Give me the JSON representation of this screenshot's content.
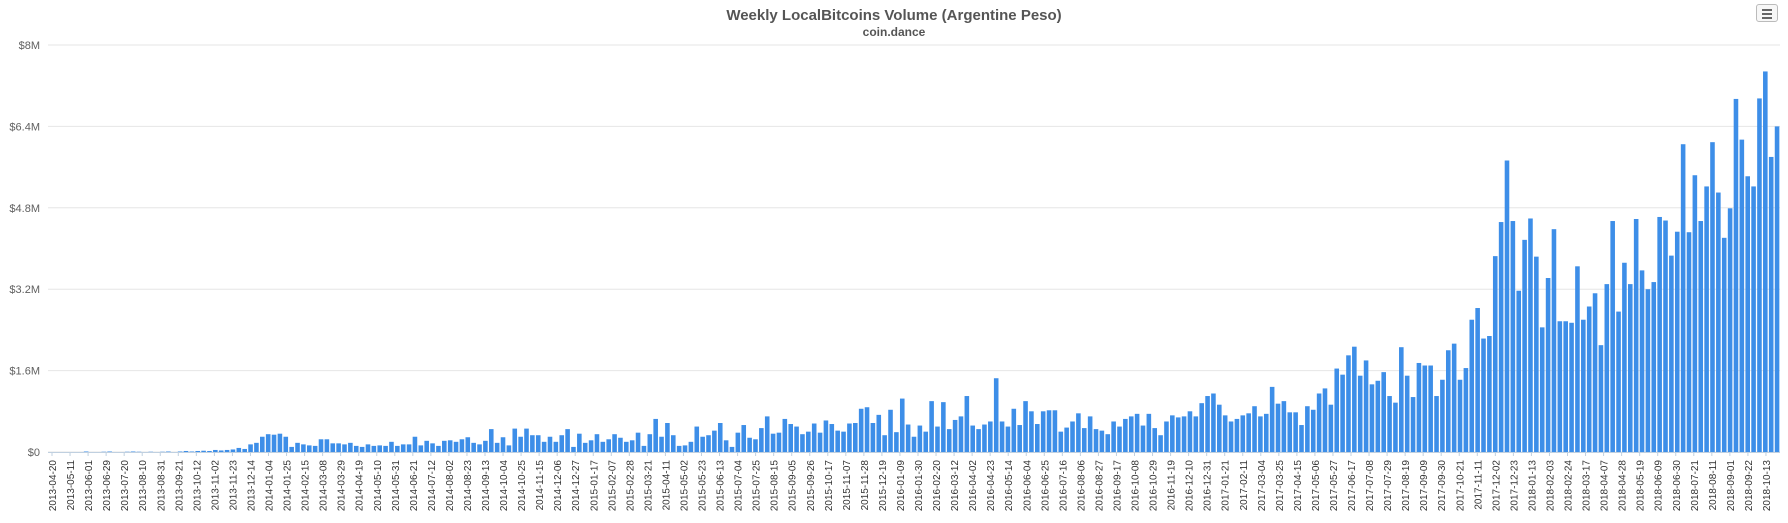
{
  "header": {
    "title": "Weekly LocalBitcoins Volume (Argentine Peso)",
    "subtitle": "coin.dance"
  },
  "colors": {
    "bar": "#3d8ee8",
    "grid": "#e6e6e6",
    "axis": "#c0d0e0"
  },
  "menu": {
    "icon": "hamburger-menu-icon"
  },
  "chart_data": {
    "type": "bar",
    "title": "Weekly LocalBitcoins Volume (Argentine Peso)",
    "subtitle": "coin.dance",
    "xlabel": "",
    "ylabel": "",
    "ylim": [
      0,
      8000000
    ],
    "yticks": [
      0,
      1600000,
      3200000,
      4800000,
      6400000,
      8000000
    ],
    "ytick_labels": [
      "$0",
      "$1.6M",
      "$3.2M",
      "$4.8M",
      "$6.4M",
      "$8M"
    ],
    "grid": true,
    "legend": "none",
    "x_tick_labels": [
      "2013-04-20",
      "2013-05-11",
      "2013-06-01",
      "2013-06-29",
      "2013-07-20",
      "2013-08-10",
      "2013-08-31",
      "2013-09-21",
      "2013-10-12",
      "2013-11-02",
      "2013-11-23",
      "2013-12-14",
      "2014-01-04",
      "2014-01-25",
      "2014-02-15",
      "2014-03-08",
      "2014-03-29",
      "2014-04-19",
      "2014-05-10",
      "2014-05-31",
      "2014-06-21",
      "2014-07-12",
      "2014-08-02",
      "2014-08-23",
      "2014-09-13",
      "2014-10-04",
      "2014-10-25",
      "2014-11-15",
      "2014-12-06",
      "2014-12-27",
      "2015-01-17",
      "2015-02-07",
      "2015-02-28",
      "2015-03-21",
      "2015-04-11",
      "2015-05-02",
      "2015-05-23",
      "2015-06-13",
      "2015-07-04",
      "2015-07-25",
      "2015-08-15",
      "2015-09-05",
      "2015-09-26",
      "2015-10-17",
      "2015-11-07",
      "2015-11-28",
      "2015-12-19",
      "2016-01-09",
      "2016-01-30",
      "2016-02-20",
      "2016-03-12",
      "2016-04-02",
      "2016-04-23",
      "2016-05-14",
      "2016-06-04",
      "2016-06-25",
      "2016-07-16",
      "2016-08-06",
      "2016-08-27",
      "2016-09-17",
      "2016-10-08",
      "2016-10-29",
      "2016-11-19",
      "2016-12-10",
      "2016-12-31",
      "2017-01-21",
      "2017-02-11",
      "2017-03-04",
      "2017-03-25",
      "2017-04-15",
      "2017-05-06",
      "2017-05-27",
      "2017-06-17",
      "2017-07-08",
      "2017-07-29",
      "2017-08-19",
      "2017-09-09",
      "2017-09-30",
      "2017-10-21",
      "2017-11-11",
      "2017-12-02",
      "2017-12-23",
      "2018-01-13",
      "2018-02-03",
      "2018-02-24",
      "2018-03-17",
      "2018-04-07",
      "2018-04-28",
      "2018-05-19",
      "2018-06-09",
      "2018-06-30",
      "2018-07-21",
      "2018-08-11",
      "2018-09-01",
      "2018-09-22",
      "2018-10-13"
    ],
    "values": [
      0,
      0,
      0,
      0,
      0,
      0,
      10000,
      0,
      0,
      5000,
      10000,
      0,
      0,
      5000,
      10000,
      5000,
      0,
      5000,
      0,
      5000,
      10000,
      0,
      10000,
      20000,
      10000,
      20000,
      25000,
      20000,
      40000,
      30000,
      40000,
      50000,
      80000,
      60000,
      150000,
      180000,
      300000,
      350000,
      340000,
      360000,
      300000,
      100000,
      180000,
      150000,
      130000,
      120000,
      250000,
      250000,
      170000,
      170000,
      150000,
      180000,
      120000,
      100000,
      150000,
      120000,
      130000,
      120000,
      200000,
      120000,
      150000,
      150000,
      300000,
      130000,
      220000,
      170000,
      120000,
      220000,
      230000,
      200000,
      250000,
      290000,
      180000,
      150000,
      220000,
      450000,
      180000,
      290000,
      130000,
      460000,
      300000,
      460000,
      330000,
      330000,
      200000,
      300000,
      200000,
      330000,
      450000,
      100000,
      360000,
      180000,
      230000,
      350000,
      200000,
      250000,
      350000,
      280000,
      200000,
      230000,
      380000,
      120000,
      350000,
      650000,
      300000,
      570000,
      330000,
      120000,
      130000,
      200000,
      500000,
      300000,
      330000,
      420000,
      570000,
      230000,
      100000,
      380000,
      530000,
      280000,
      250000,
      470000,
      700000,
      360000,
      380000,
      650000,
      550000,
      500000,
      350000,
      400000,
      560000,
      380000,
      620000,
      550000,
      420000,
      400000,
      560000,
      570000,
      850000,
      880000,
      570000,
      730000,
      330000,
      830000,
      390000,
      1050000,
      540000,
      300000,
      520000,
      400000,
      1000000,
      500000,
      980000,
      450000,
      630000,
      700000,
      1100000,
      520000,
      450000,
      540000,
      600000,
      1450000,
      600000,
      500000,
      850000,
      530000,
      1000000,
      800000,
      550000,
      800000,
      820000,
      820000,
      400000,
      480000,
      600000,
      760000,
      470000,
      700000,
      450000,
      420000,
      350000,
      600000,
      500000,
      650000,
      700000,
      750000,
      520000,
      750000,
      470000,
      330000,
      600000,
      720000,
      680000,
      700000,
      800000,
      700000,
      960000,
      1100000,
      1150000,
      930000,
      720000,
      600000,
      650000,
      720000,
      760000,
      900000,
      700000,
      750000,
      1280000,
      950000,
      1000000,
      780000,
      780000,
      530000,
      900000,
      830000,
      1150000,
      1250000,
      930000,
      1640000,
      1520000,
      1900000,
      2070000,
      1500000,
      1800000,
      1330000,
      1400000,
      1570000,
      1100000,
      970000,
      2060000,
      1500000,
      1080000,
      1750000,
      1700000,
      1700000,
      1100000,
      1420000,
      2000000,
      2130000,
      1420000,
      1650000,
      2600000,
      2830000,
      2230000,
      2280000,
      3850000,
      4520000,
      5730000,
      4540000,
      3170000,
      4170000,
      4590000,
      3840000,
      2450000,
      3420000,
      4380000,
      2570000,
      2570000,
      2540000,
      3650000,
      2600000,
      2860000,
      3120000,
      2100000,
      3300000,
      4540000,
      2760000,
      3720000,
      3300000,
      4580000,
      3570000,
      3200000,
      3340000,
      4620000,
      4550000,
      3860000,
      4330000,
      6050000,
      4320000,
      5440000,
      4540000,
      5220000,
      6090000,
      5100000,
      4210000,
      4790000,
      6940000,
      6140000,
      5420000,
      5220000,
      6950000,
      7480000,
      5800000,
      6400000
    ]
  }
}
